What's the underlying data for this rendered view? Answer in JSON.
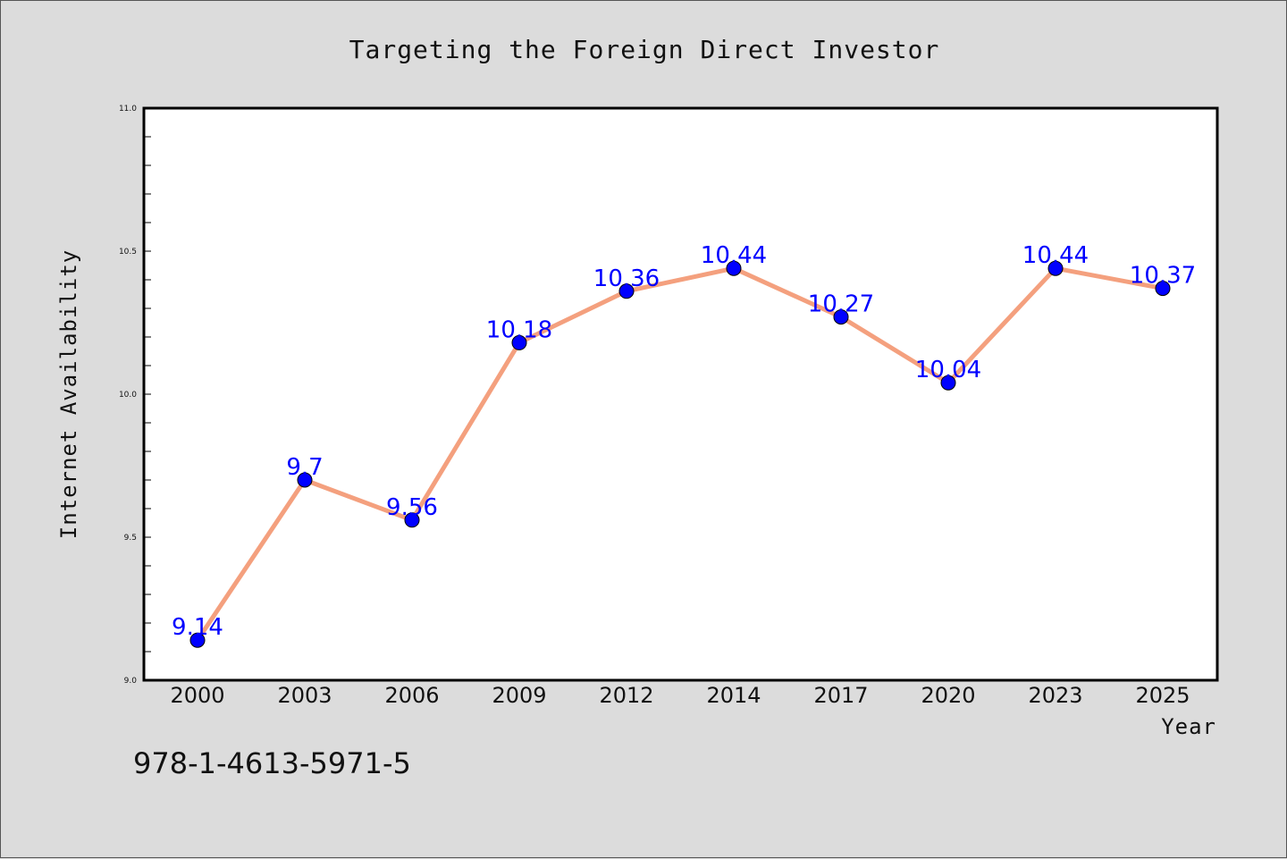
{
  "chart_data": {
    "type": "line",
    "title": "Targeting the Foreign Direct Investor",
    "xlabel": "Year",
    "ylabel": "Internet Availability",
    "categories": [
      "2000",
      "2003",
      "2006",
      "2009",
      "2012",
      "2014",
      "2017",
      "2020",
      "2023",
      "2025"
    ],
    "values": [
      9.14,
      9.7,
      9.56,
      10.18,
      10.36,
      10.44,
      10.27,
      10.04,
      10.44,
      10.37
    ],
    "data_labels": [
      "9.14",
      "9.7",
      "9.56",
      "10.18",
      "10.36",
      "10.44",
      "10.27",
      "10.04",
      "10.44",
      "10.37"
    ],
    "ylim": [
      9.0,
      11.0
    ],
    "yticks": [
      "9.0",
      "9.5",
      "10.0",
      "10.5",
      "11.0"
    ],
    "grid": false,
    "line_color": "#f4a07e",
    "marker_color": "#0000ff",
    "label_color": "#0000ff"
  },
  "footer": {
    "isbn": "978-1-4613-5971-5"
  }
}
